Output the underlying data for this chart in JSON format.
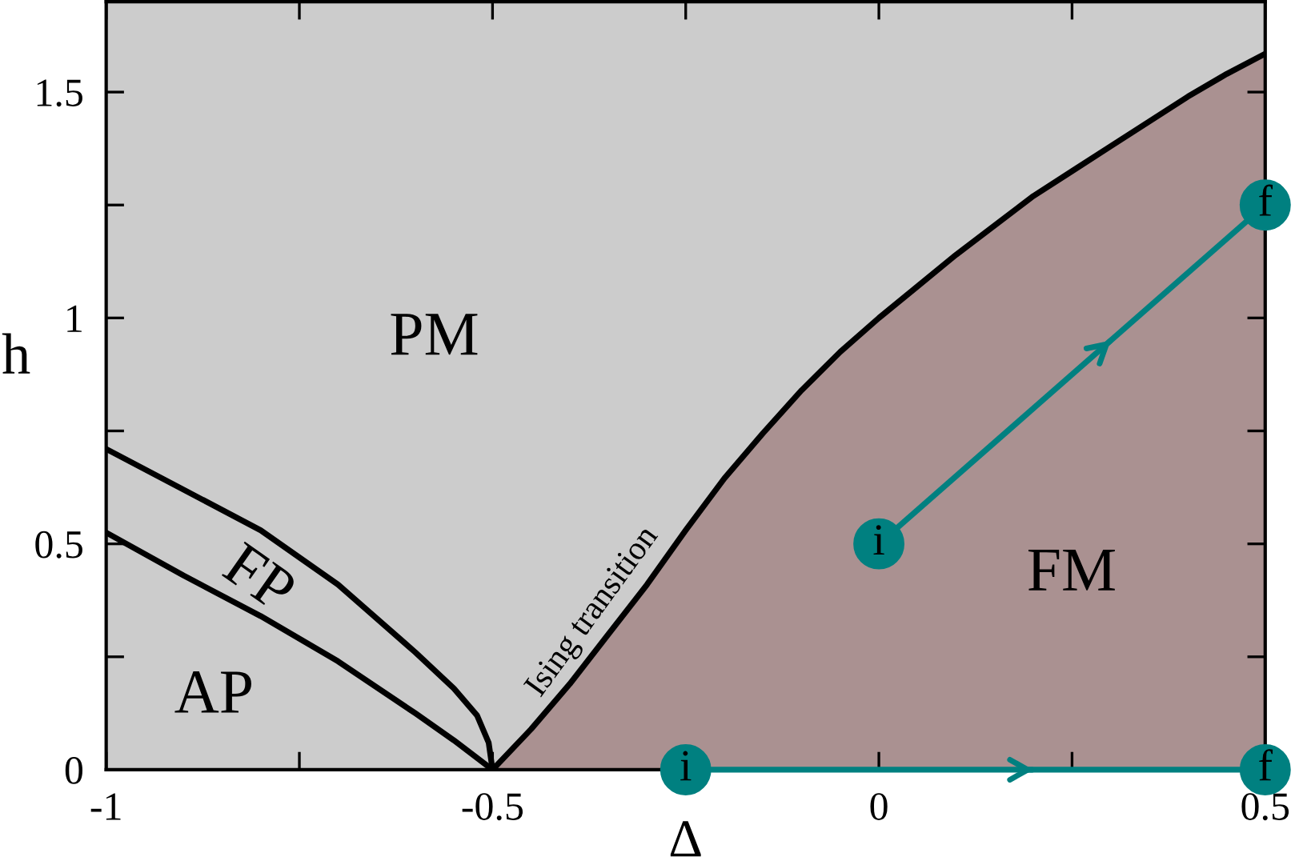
{
  "chart_data": {
    "type": "line",
    "xlabel": "Δ",
    "ylabel": "h",
    "xlim": [
      -1,
      0.5
    ],
    "ylim": [
      0,
      1.7
    ],
    "xticks": [
      -1,
      {
        "value": -0.75,
        "label": null
      },
      -0.5,
      {
        "value": -0.25,
        "label": null
      },
      0,
      {
        "value": 0.25,
        "label": null
      },
      0.5
    ],
    "yticks": [
      0,
      {
        "value": 0.25,
        "label": null
      },
      0.5,
      {
        "value": 0.75,
        "label": null
      },
      1,
      {
        "value": 1.25,
        "label": null
      },
      1.5
    ],
    "grid": false,
    "legend": false,
    "bands": [
      {
        "axis": "x",
        "from": -1,
        "to": 0.5,
        "color": "#cccccc"
      }
    ],
    "series": [
      {
        "type": "area",
        "color": "#aa9191",
        "line_style": "solid",
        "x": [
          -0.5,
          -0.45,
          -0.4,
          -0.35,
          -0.3,
          -0.25,
          -0.2,
          -0.15,
          -0.1,
          -0.05,
          0,
          0.05,
          0.1,
          0.15,
          0.2,
          0.25,
          0.3,
          0.35,
          0.4,
          0.45,
          0.5
        ],
        "values": [
          0,
          0.09,
          0.19,
          0.3,
          0.41,
          0.53,
          0.645,
          0.745,
          0.84,
          0.925,
          1.0,
          1.07,
          1.14,
          1.205,
          1.27,
          1.325,
          1.38,
          1.435,
          1.49,
          1.54,
          1.585
        ]
      },
      {
        "color": "#000000",
        "x": [
          -1,
          -0.9,
          -0.8,
          -0.7,
          -0.6,
          -0.55,
          -0.52,
          -0.505,
          -0.5
        ],
        "values": [
          0.71,
          0.62,
          0.53,
          0.41,
          0.26,
          0.18,
          0.12,
          0.06,
          0
        ]
      },
      {
        "color": "#000000",
        "x": [
          -1,
          -0.9,
          -0.8,
          -0.7,
          -0.6,
          -0.55,
          -0.5
        ],
        "values": [
          0.525,
          0.43,
          0.34,
          0.24,
          0.125,
          0.065,
          0
        ]
      },
      {
        "color": "#008080",
        "marker": "circle",
        "x": [
          0,
          0.5
        ],
        "values": [
          0.5,
          1.25
        ]
      },
      {
        "color": "#008080",
        "marker": "circle",
        "x": [
          -0.25,
          0.5
        ],
        "values": [
          0,
          0
        ]
      }
    ],
    "annotations": [
      "PM",
      "FP",
      "AP",
      "FM",
      "Ising transition",
      {
        "text": "i",
        "x": 0,
        "y": 0.5
      },
      {
        "text": "f",
        "x": 0.5,
        "y": 1.25
      },
      {
        "text": "i",
        "x": -0.25,
        "y": 0
      },
      {
        "text": "f",
        "x": 0.5,
        "y": 0
      }
    ]
  }
}
